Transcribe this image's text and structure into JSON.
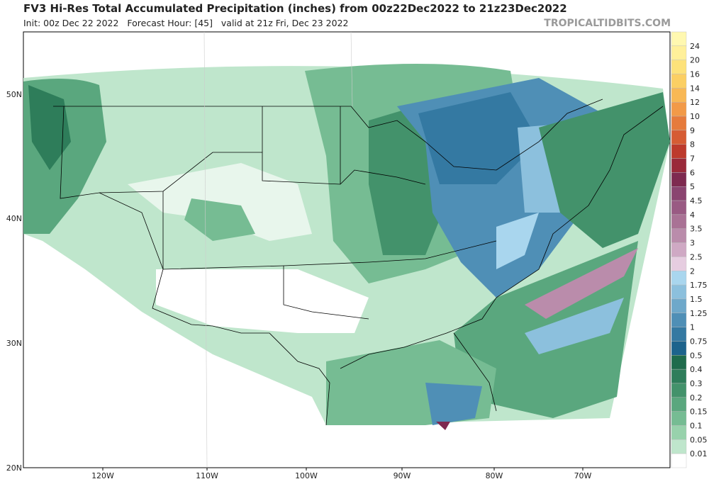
{
  "header": {
    "title": "FV3 Hi-Res Total Accumulated Precipitation (inches) from 00z22Dec2022 to 21z23Dec2022",
    "subtitle": "Init: 00z Dec 22 2022   Forecast Hour: [45]   valid at 21z Fri, Dec 23 2022",
    "brand": "TROPICALTIDBITS.COM"
  },
  "map": {
    "lat_labels": [
      "50N",
      "40N",
      "30N",
      "20N"
    ],
    "lon_labels": [
      "120W",
      "110W",
      "100W",
      "90W",
      "80W",
      "70W"
    ]
  },
  "legend": {
    "items": [
      {
        "label": "24",
        "color": "#fff8b0"
      },
      {
        "label": "20",
        "color": "#fff09a"
      },
      {
        "label": "16",
        "color": "#fde27a"
      },
      {
        "label": "14",
        "color": "#fbcf63"
      },
      {
        "label": "12",
        "color": "#f8b855"
      },
      {
        "label": "10",
        "color": "#f29a48"
      },
      {
        "label": "9",
        "color": "#e67b3c"
      },
      {
        "label": "8",
        "color": "#d65c34"
      },
      {
        "label": "7",
        "color": "#bd3a2c"
      },
      {
        "label": "6",
        "color": "#9a2a3a"
      },
      {
        "label": "5",
        "color": "#7e2a50"
      },
      {
        "label": "4.5",
        "color": "#8a4470"
      },
      {
        "label": "4",
        "color": "#995a83"
      },
      {
        "label": "3.5",
        "color": "#a97295"
      },
      {
        "label": "3",
        "color": "#ba8cab"
      },
      {
        "label": "2.5",
        "color": "#cfa9c4"
      },
      {
        "label": "2",
        "color": "#e6cde0"
      },
      {
        "label": "1.75",
        "color": "#a9d6ee"
      },
      {
        "label": "1.5",
        "color": "#8cc0dd"
      },
      {
        "label": "1.25",
        "color": "#6ea8ca"
      },
      {
        "label": "1",
        "color": "#4f8fb6"
      },
      {
        "label": "0.75",
        "color": "#3479a2"
      },
      {
        "label": "0.5",
        "color": "#1d638c"
      },
      {
        "label": "0.4",
        "color": "#1f6b4c"
      },
      {
        "label": "0.3",
        "color": "#2e7d5a"
      },
      {
        "label": "0.2",
        "color": "#43926b"
      },
      {
        "label": "0.15",
        "color": "#5aa77e"
      },
      {
        "label": "0.1",
        "color": "#76bc93"
      },
      {
        "label": "0.05",
        "color": "#98d2ac"
      },
      {
        "label": "0.01",
        "color": "#bfe6cc"
      },
      {
        "color": "#ffffff"
      }
    ]
  }
}
